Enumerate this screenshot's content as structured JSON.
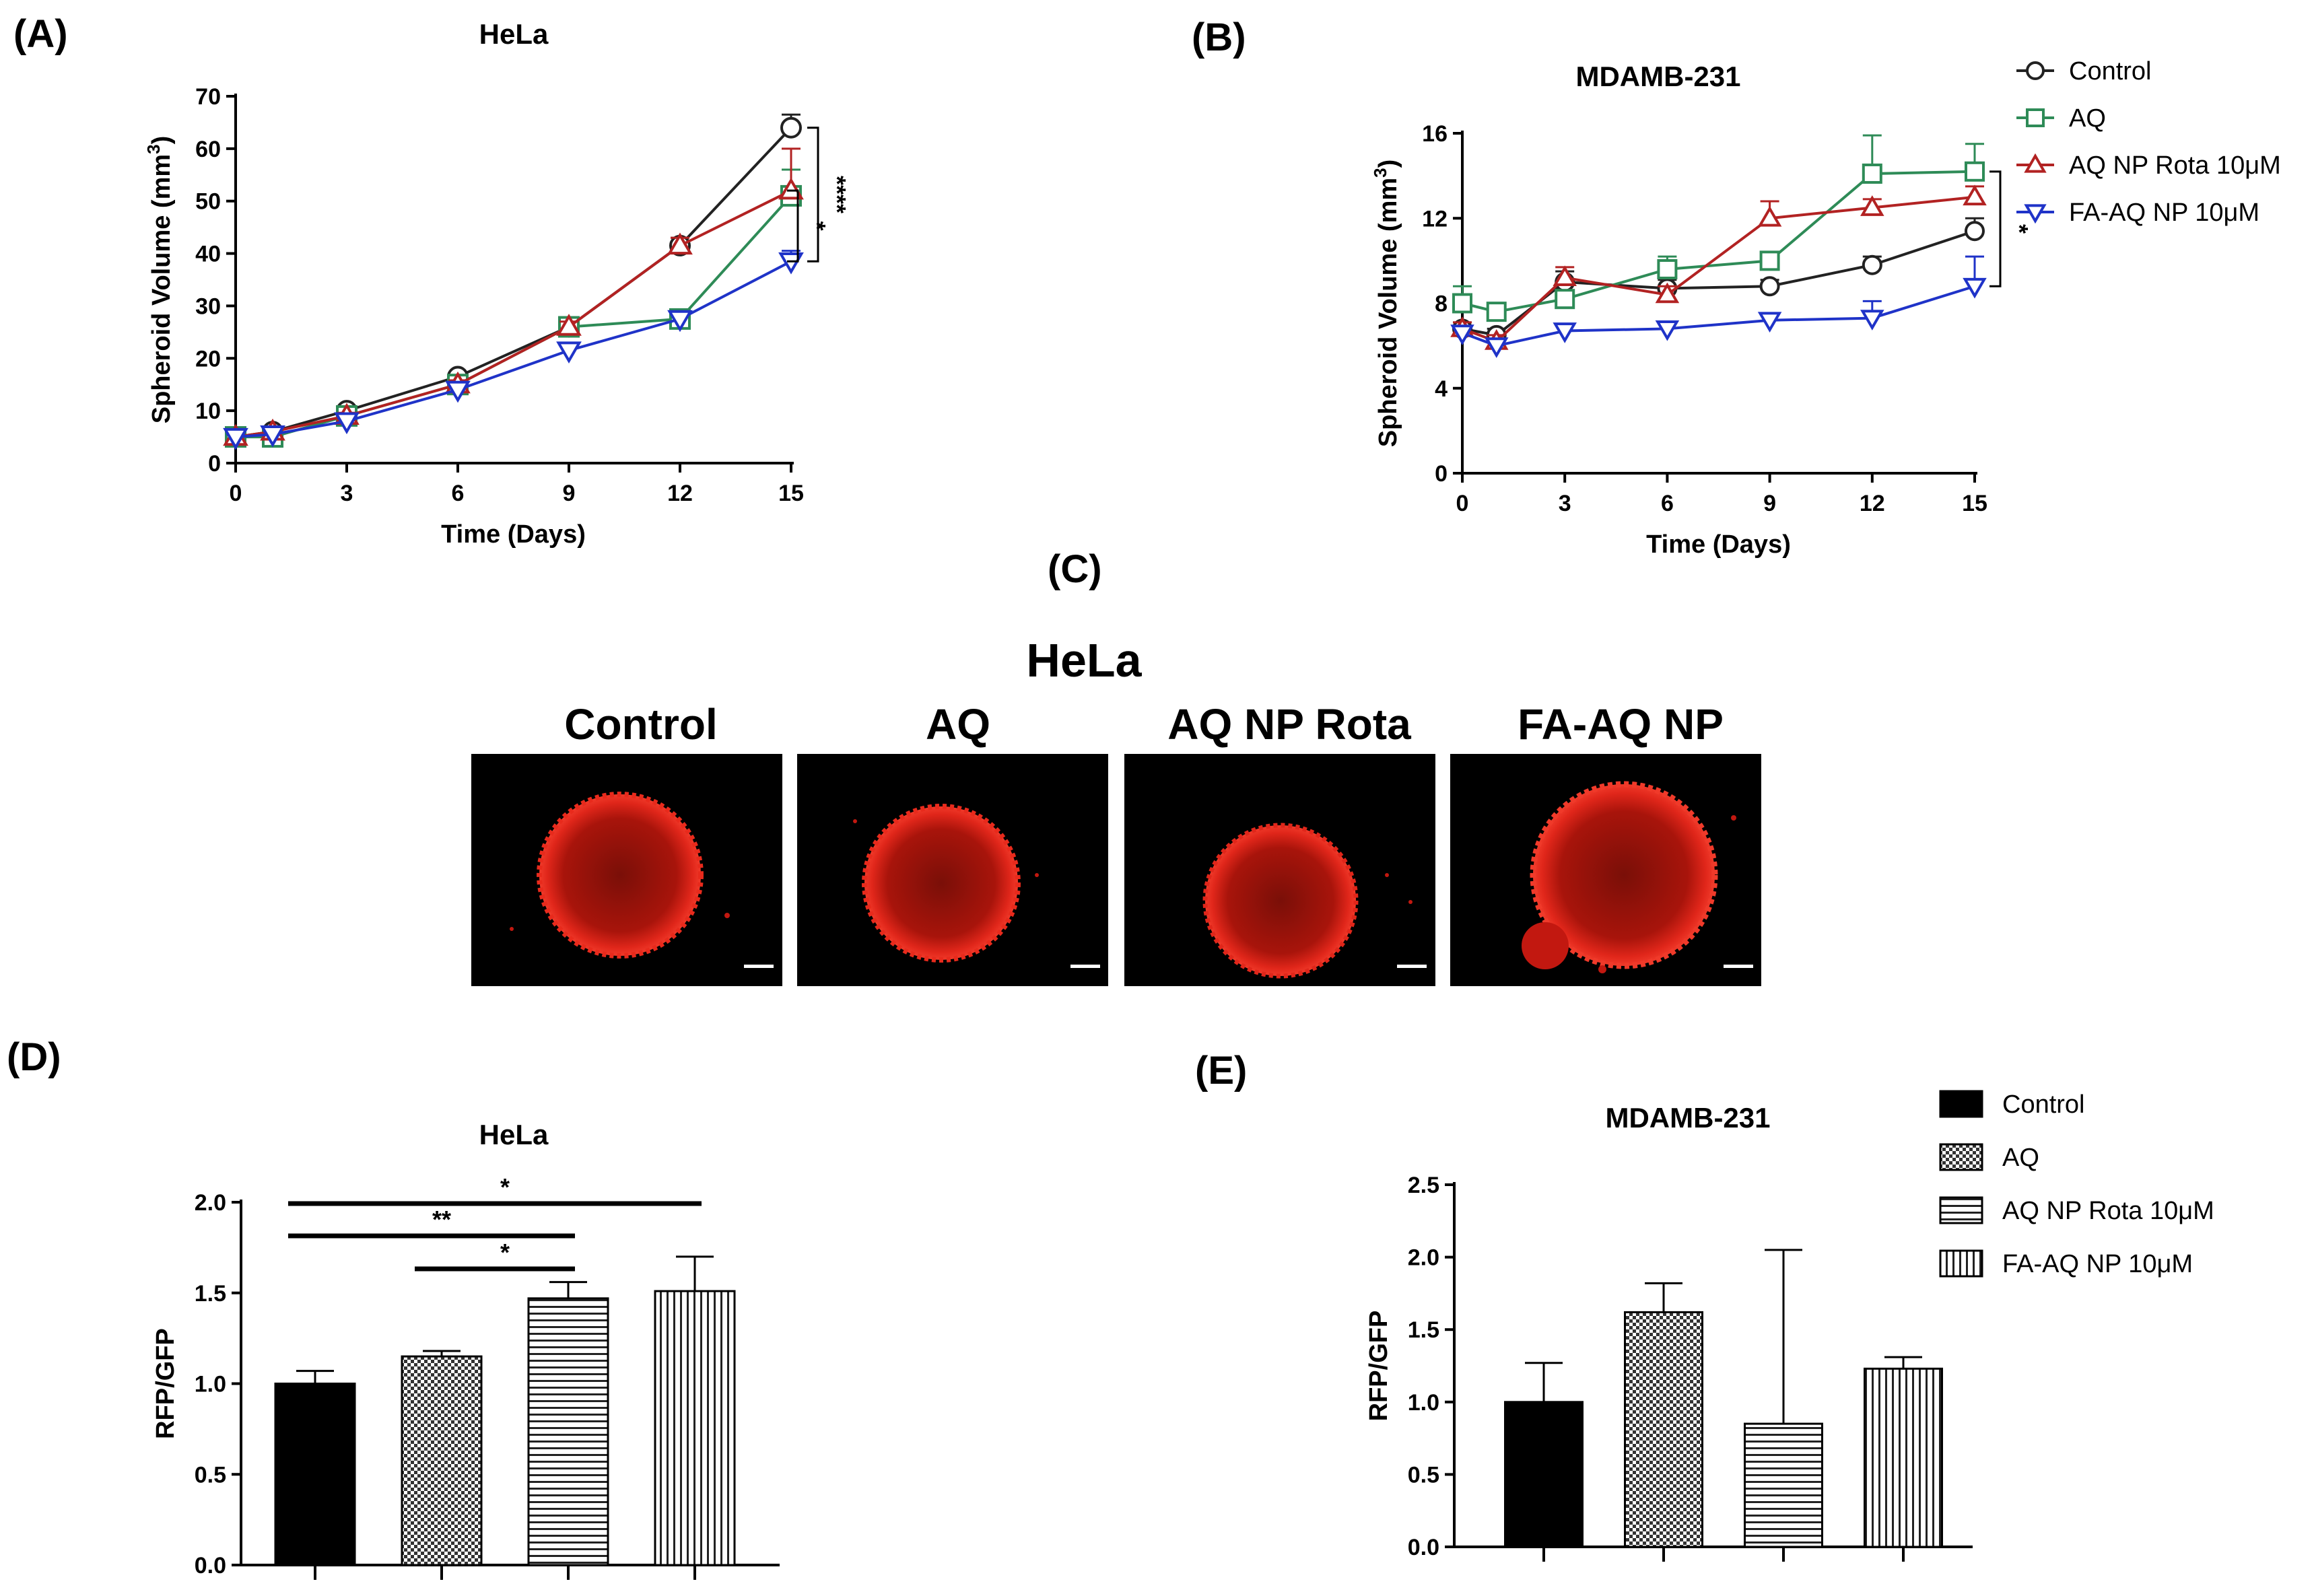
{
  "figure": {
    "panels": {
      "A": "(A)",
      "B": "(B)",
      "C": "(C)",
      "D": "(D)",
      "E": "(E)"
    }
  },
  "panel_c": {
    "title": "HeLa",
    "images": [
      {
        "label": "Control"
      },
      {
        "label": "AQ"
      },
      {
        "label": "AQ NP Rota"
      },
      {
        "label": "FA-AQ NP"
      }
    ],
    "colors": {
      "background": "#000000",
      "stain": "#d41a10"
    }
  },
  "chart_data": [
    {
      "id": "A",
      "type": "line",
      "title": "HeLa",
      "xlabel": "Time (Days)",
      "ylabel": "Spheroid Volume (mm",
      "ylabel_sup": "3",
      "ylabel_end": ")",
      "x": [
        0,
        1,
        3,
        6,
        9,
        12,
        15
      ],
      "xticks": [
        "0",
        "3",
        "6",
        "9",
        "12",
        "15"
      ],
      "xtick_values": [
        0,
        3,
        6,
        9,
        12,
        15
      ],
      "xlim": [
        0,
        15
      ],
      "ylim": [
        0,
        70
      ],
      "yticks": [
        "0",
        "10",
        "20",
        "30",
        "40",
        "50",
        "60",
        "70"
      ],
      "series": [
        {
          "name": "Control",
          "color": "#222222",
          "marker": "circle",
          "values": [
            5,
            6,
            10,
            16.5,
            26,
            41.5,
            64
          ],
          "err": [
            0.5,
            0.5,
            0.7,
            0.8,
            1.0,
            1.5,
            2.5
          ]
        },
        {
          "name": "AQ",
          "color": "#2e8b57",
          "marker": "square",
          "values": [
            5,
            5,
            9,
            15,
            26,
            27.5,
            51
          ],
          "err": [
            0.5,
            0.5,
            0.6,
            0.8,
            1.0,
            1.2,
            5
          ]
        },
        {
          "name": "AQ NP Rota 10μM",
          "color": "#b22222",
          "marker": "triangle-up",
          "values": [
            5,
            6,
            9,
            15,
            26,
            41.5,
            52
          ],
          "err": [
            0.5,
            0.5,
            0.6,
            0.8,
            1.0,
            1.5,
            8
          ]
        },
        {
          "name": "FA-AQ NP 10μM",
          "color": "#1f33c8",
          "marker": "triangle-down",
          "values": [
            5,
            5.5,
            8,
            14,
            21.5,
            27.5,
            38.5
          ],
          "err": [
            0.5,
            0.5,
            0.6,
            0.8,
            1.0,
            1.2,
            2
          ]
        }
      ],
      "annotations": [
        {
          "text": "****",
          "from": 64,
          "to": 38.5
        },
        {
          "text": "*",
          "from": 52,
          "to": 38.5
        }
      ]
    },
    {
      "id": "B",
      "type": "line",
      "title": "MDAMB-231",
      "xlabel": "Time (Days)",
      "ylabel": "Spheroid Volume (mm",
      "ylabel_sup": "3",
      "ylabel_end": ")",
      "x": [
        0,
        1,
        3,
        6,
        9,
        12,
        15
      ],
      "xticks": [
        "0",
        "3",
        "6",
        "9",
        "12",
        "15"
      ],
      "xtick_values": [
        0,
        3,
        6,
        9,
        12,
        15
      ],
      "xlim": [
        0,
        15
      ],
      "ylim": [
        0,
        16
      ],
      "yticks": [
        "0",
        "4",
        "8",
        "12",
        "16"
      ],
      "legend": {
        "position": "top-right"
      },
      "series": [
        {
          "name": "Control",
          "color": "#222222",
          "marker": "circle",
          "values": [
            6.8,
            6.5,
            9.0,
            8.7,
            8.8,
            9.8,
            11.4
          ],
          "err": [
            0.3,
            0.3,
            0.5,
            0.4,
            0.3,
            0.4,
            0.6
          ]
        },
        {
          "name": "AQ",
          "color": "#2e8b57",
          "marker": "square",
          "values": [
            8.0,
            7.6,
            8.2,
            9.6,
            10.0,
            14.1,
            14.2
          ],
          "err": [
            0.8,
            0.4,
            0.4,
            0.6,
            0.4,
            1.8,
            1.3
          ]
        },
        {
          "name": "AQ NP Rota 10μM",
          "color": "#b22222",
          "marker": "triangle-up",
          "values": [
            6.8,
            6.2,
            9.2,
            8.4,
            12.0,
            12.5,
            13.0
          ],
          "err": [
            0.3,
            0.3,
            0.5,
            0.4,
            0.8,
            0.4,
            0.5
          ]
        },
        {
          "name": "FA-AQ NP 10μM",
          "color": "#1f33c8",
          "marker": "triangle-down",
          "values": [
            6.6,
            6.0,
            6.7,
            6.8,
            7.2,
            7.3,
            8.8
          ],
          "err": [
            0.3,
            0.3,
            0.3,
            0.3,
            0.3,
            0.8,
            1.4
          ]
        }
      ],
      "annotations": [
        {
          "text": "*",
          "from": 14.2,
          "to": 8.8
        }
      ]
    },
    {
      "id": "D",
      "type": "bar",
      "title": "HeLa",
      "ylabel": "RFP/GFP",
      "categories": [
        "Control",
        "AQ",
        "AQ NP Rota 10μM",
        "FA-AQ NP 10μM"
      ],
      "values": [
        1.0,
        1.15,
        1.47,
        1.51
      ],
      "err": [
        0.07,
        0.03,
        0.09,
        0.19
      ],
      "patterns": [
        "solid",
        "checker",
        "horizontal",
        "vertical"
      ],
      "ylim": [
        0,
        2.0
      ],
      "yticks": [
        "0.0",
        "0.5",
        "1.0",
        "1.5",
        "2.0"
      ],
      "significance": [
        {
          "from": 0,
          "to": 3,
          "text": "*"
        },
        {
          "from": 0,
          "to": 2,
          "text": "**"
        },
        {
          "from": 1,
          "to": 2,
          "text": "*"
        }
      ]
    },
    {
      "id": "E",
      "type": "bar",
      "title": "MDAMB-231",
      "ylabel": "RFP/GFP",
      "categories": [
        "Control",
        "AQ",
        "AQ NP Rota 10μM",
        "FA-AQ NP 10μM"
      ],
      "values": [
        1.0,
        1.62,
        0.85,
        1.23
      ],
      "err": [
        0.27,
        0.2,
        1.2,
        0.08
      ],
      "patterns": [
        "solid",
        "checker",
        "horizontal",
        "vertical"
      ],
      "ylim": [
        0,
        2.5
      ],
      "yticks": [
        "0.0",
        "0.5",
        "1.0",
        "1.5",
        "2.0",
        "2.5"
      ],
      "legend": {
        "position": "top-right"
      }
    }
  ]
}
